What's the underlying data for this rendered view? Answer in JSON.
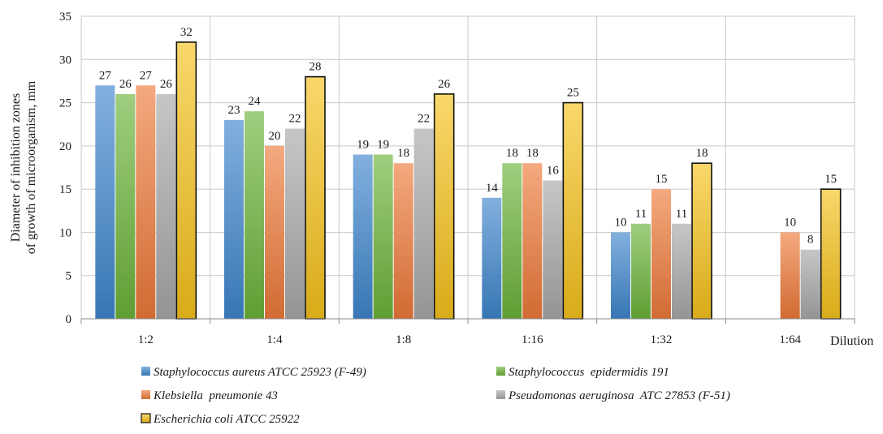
{
  "chart_data": {
    "type": "bar",
    "title": "",
    "ylabel": "Diameter of inhibition zones of growth of microorganism, mm",
    "ylabel_lines": [
      "Diameter of inhibition zones",
      "of growth of microorganism, mm"
    ],
    "xlabel": "Dilution",
    "ylim": [
      0,
      35
    ],
    "yticks": [
      0,
      5,
      10,
      15,
      20,
      25,
      30,
      35
    ],
    "grid": true,
    "legend_position": "bottom",
    "categories": [
      "1:2",
      "1:4",
      "1:8",
      "1:16",
      "1:32",
      "1:64"
    ],
    "series": [
      {
        "name": "Staphylococcus aureus ATCC 25923 (F-49)",
        "color": "#3f86cc",
        "values": [
          27,
          23,
          19,
          14,
          10,
          null
        ]
      },
      {
        "name": "Staphylococcus  epidermidis 191",
        "color": "#6cb33a",
        "values": [
          26,
          24,
          19,
          18,
          11,
          null
        ]
      },
      {
        "name": "Klebsiella  pneumonie 43",
        "color": "#ee7a3a",
        "values": [
          27,
          20,
          18,
          18,
          15,
          10
        ]
      },
      {
        "name": "Pseudomonas aeruginosa  ATC 27853 (F-51)",
        "color": "#a8a8a8",
        "values": [
          26,
          22,
          22,
          16,
          11,
          8
        ]
      },
      {
        "name": "Escherichia coli ATCC 25922",
        "color": "#f6c21c",
        "values": [
          32,
          28,
          26,
          25,
          18,
          15
        ],
        "outlined": true
      }
    ]
  }
}
